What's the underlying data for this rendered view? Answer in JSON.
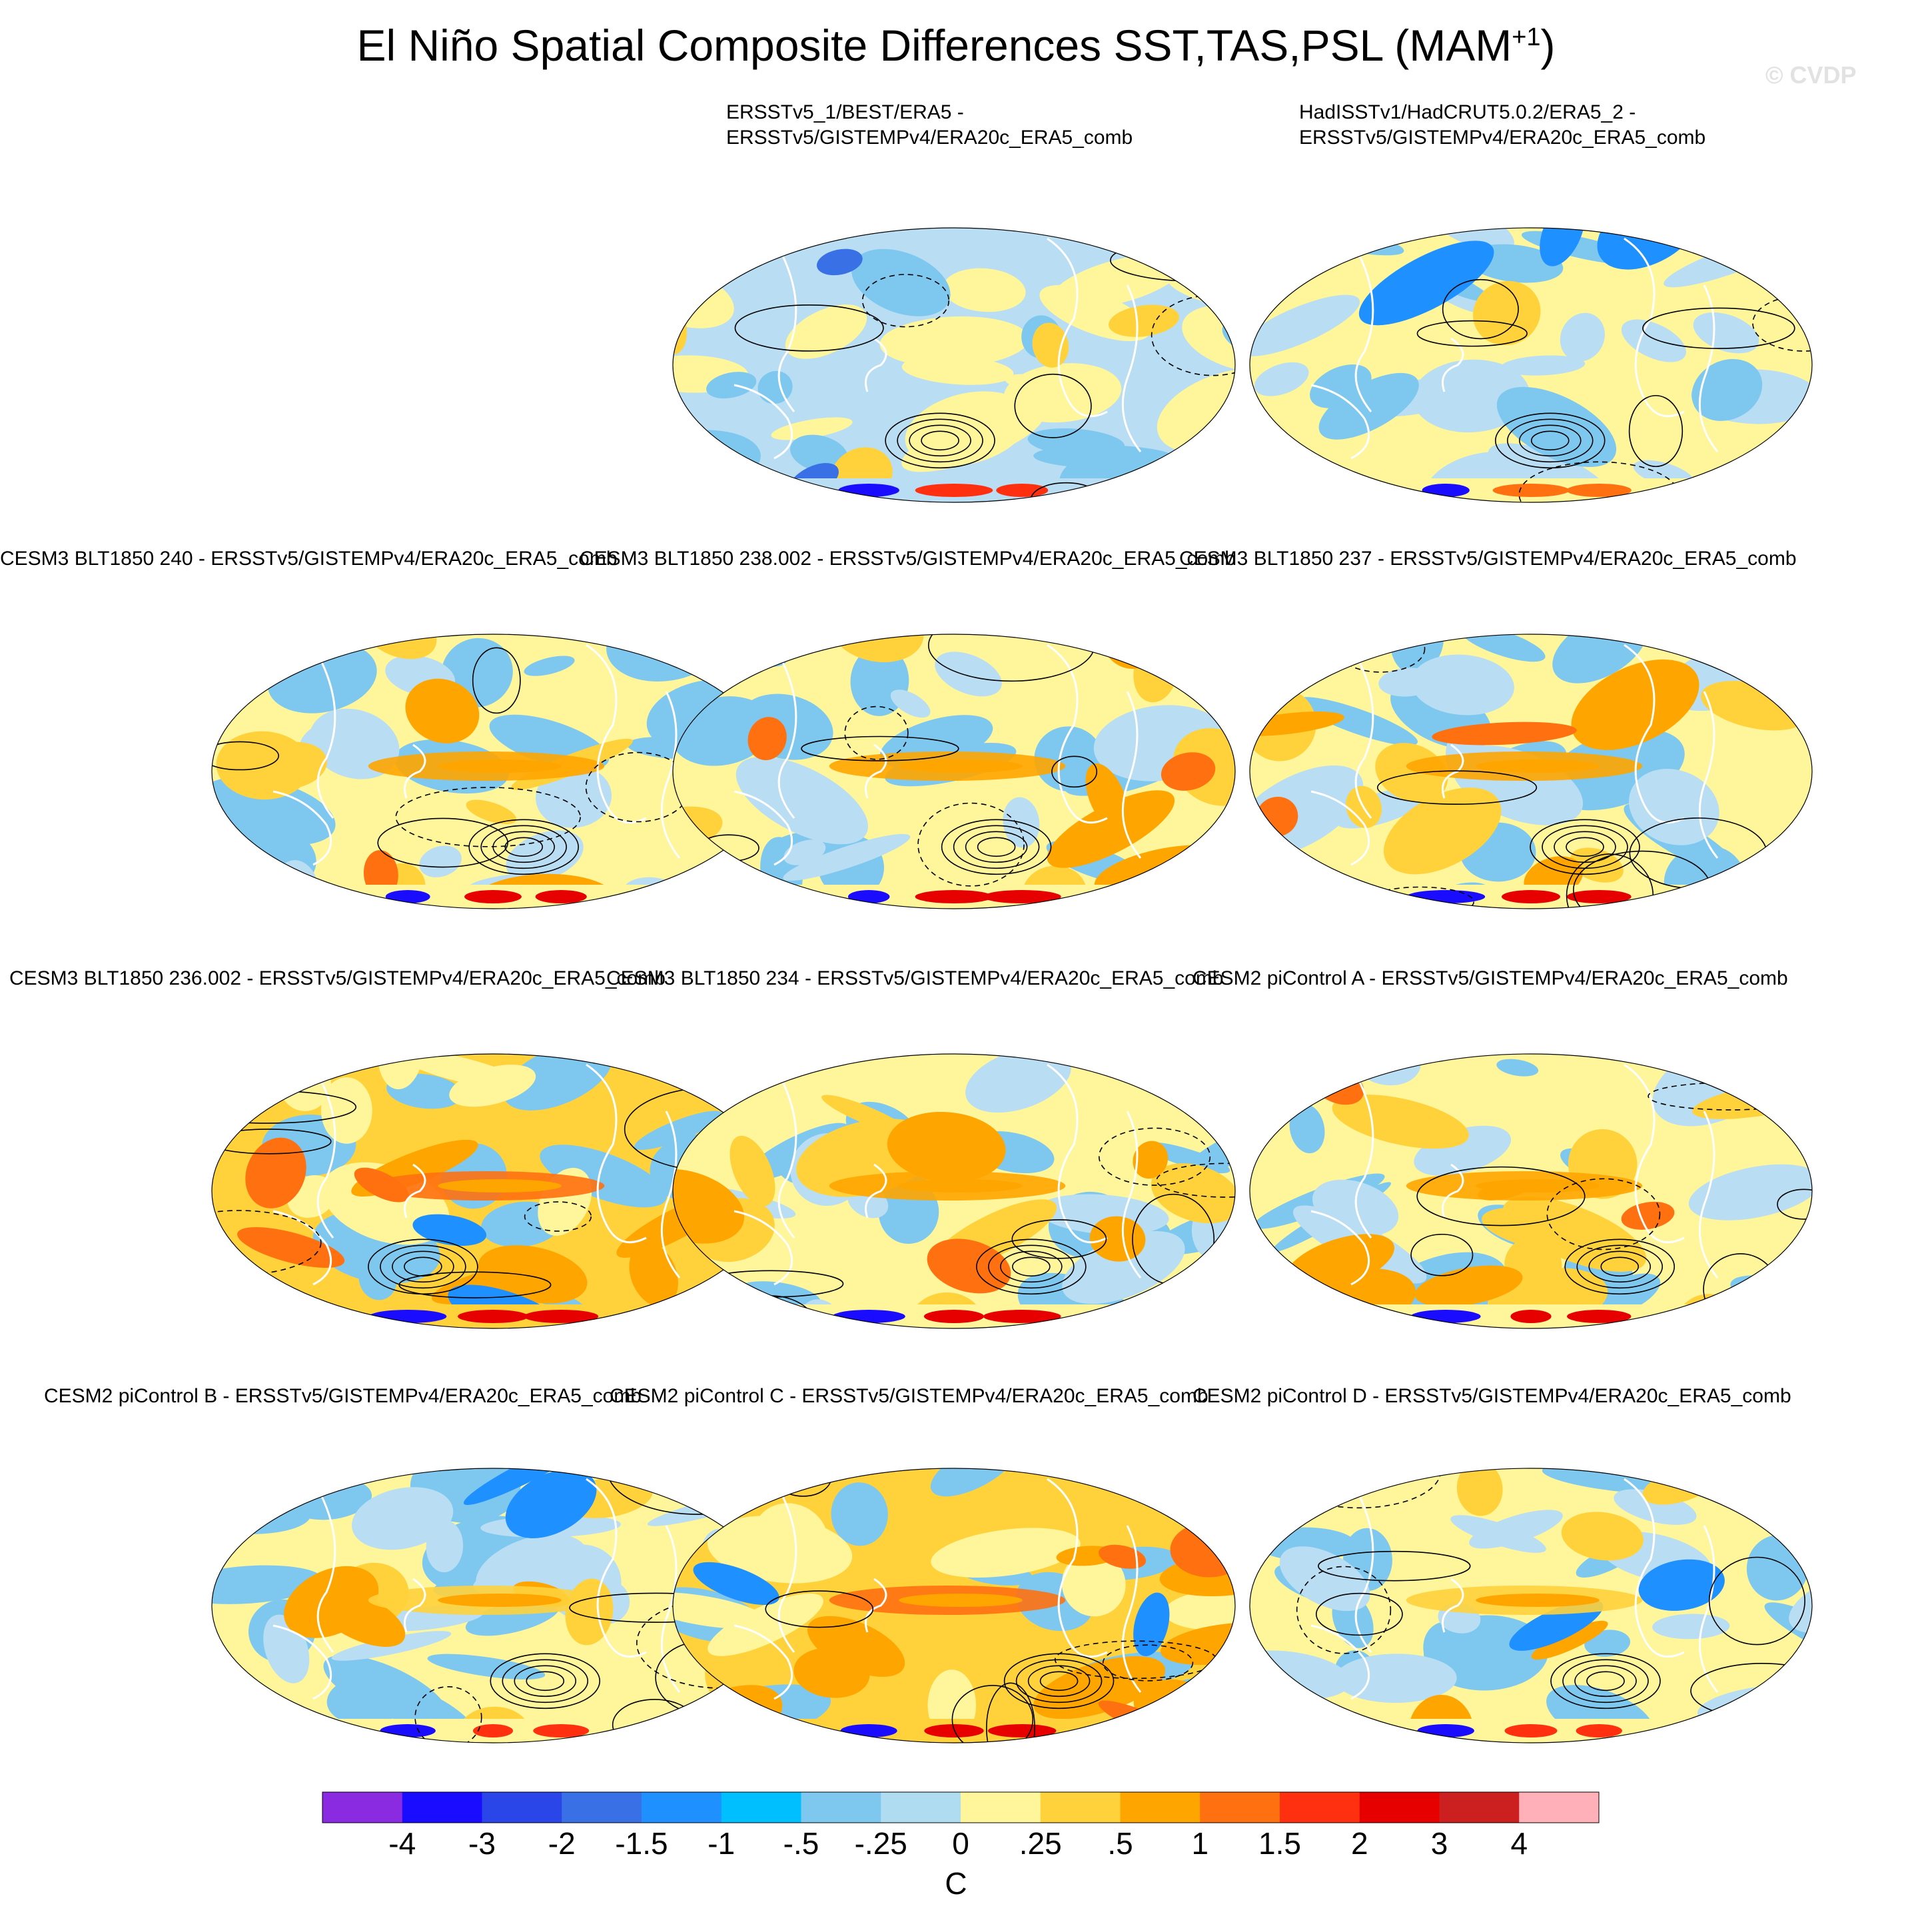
{
  "title": "El Niño Spatial Composite Differences SST,TAS,PSL (MAM",
  "title_sup": "+1",
  "title_end": ")",
  "watermark": "© CVDP",
  "panels": [
    {
      "label_line1": "ERSSTv5_1/BEST/ERA5 -",
      "label_line2": "ERSSTv5/GISTEMPv4/ERA20c_ERA5_comb",
      "theme": "obs1"
    },
    {
      "label_line1": "HadISSTv1/HadCRUT5.0.2/ERA5_2 -",
      "label_line2": "ERSSTv5/GISTEMPv4/ERA20c_ERA5_comb",
      "theme": "obs2"
    },
    {
      "label": "CESM3 BLT1850 240 - ERSSTv5/GISTEMPv4/ERA20c_ERA5_comb",
      "theme": "warm"
    },
    {
      "label": "CESM3 BLT1850 238.002 - ERSSTv5/GISTEMPv4/ERA20c_ERA5_comb",
      "theme": "warm"
    },
    {
      "label": "CESM3 BLT1850 237 - ERSSTv5/GISTEMPv4/ERA20c_ERA5_comb",
      "theme": "warm"
    },
    {
      "label": "CESM3 BLT1850 236.002 - ERSSTv5/GISTEMPv4/ERA20c_ERA5_comb",
      "theme": "hot"
    },
    {
      "label": "CESM3 BLT1850 234 - ERSSTv5/GISTEMPv4/ERA20c_ERA5_comb",
      "theme": "warm"
    },
    {
      "label": "CESM2 piControl A - ERSSTv5/GISTEMPv4/ERA20c_ERA5_comb",
      "theme": "warm"
    },
    {
      "label": "CESM2 piControl B - ERSSTv5/GISTEMPv4/ERA20c_ERA5_comb",
      "theme": "cool"
    },
    {
      "label": "CESM2 piControl C - ERSSTv5/GISTEMPv4/ERA20c_ERA5_comb",
      "theme": "hot"
    },
    {
      "label": "CESM2 piControl D - ERSSTv5/GISTEMPv4/ERA20c_ERA5_comb",
      "theme": "cool"
    }
  ],
  "chart_data": {
    "type": "heatmap",
    "title": "El Niño Spatial Composite Differences SST,TAS,PSL (MAM+1)",
    "variables": [
      "SST",
      "TAS",
      "PSL"
    ],
    "season": "MAM+1",
    "colorbar": {
      "units": "C",
      "tick_labels": [
        "-4",
        "-3",
        "-2",
        "-1.5",
        "-1",
        "-.5",
        "-.25",
        "0",
        ".25",
        ".5",
        "1",
        "1.5",
        "2",
        "3",
        "4"
      ],
      "colors": [
        "#8a2be2",
        "#1a0dff",
        "#2a45e8",
        "#3a70e6",
        "#1f90ff",
        "#00bfff",
        "#7ec8f0",
        "#b0dcf2",
        "#fff59a",
        "#ffd23c",
        "#ffa500",
        "#ff7010",
        "#ff3010",
        "#e60000",
        "#cc2020",
        "#ffb0b8"
      ]
    }
  }
}
